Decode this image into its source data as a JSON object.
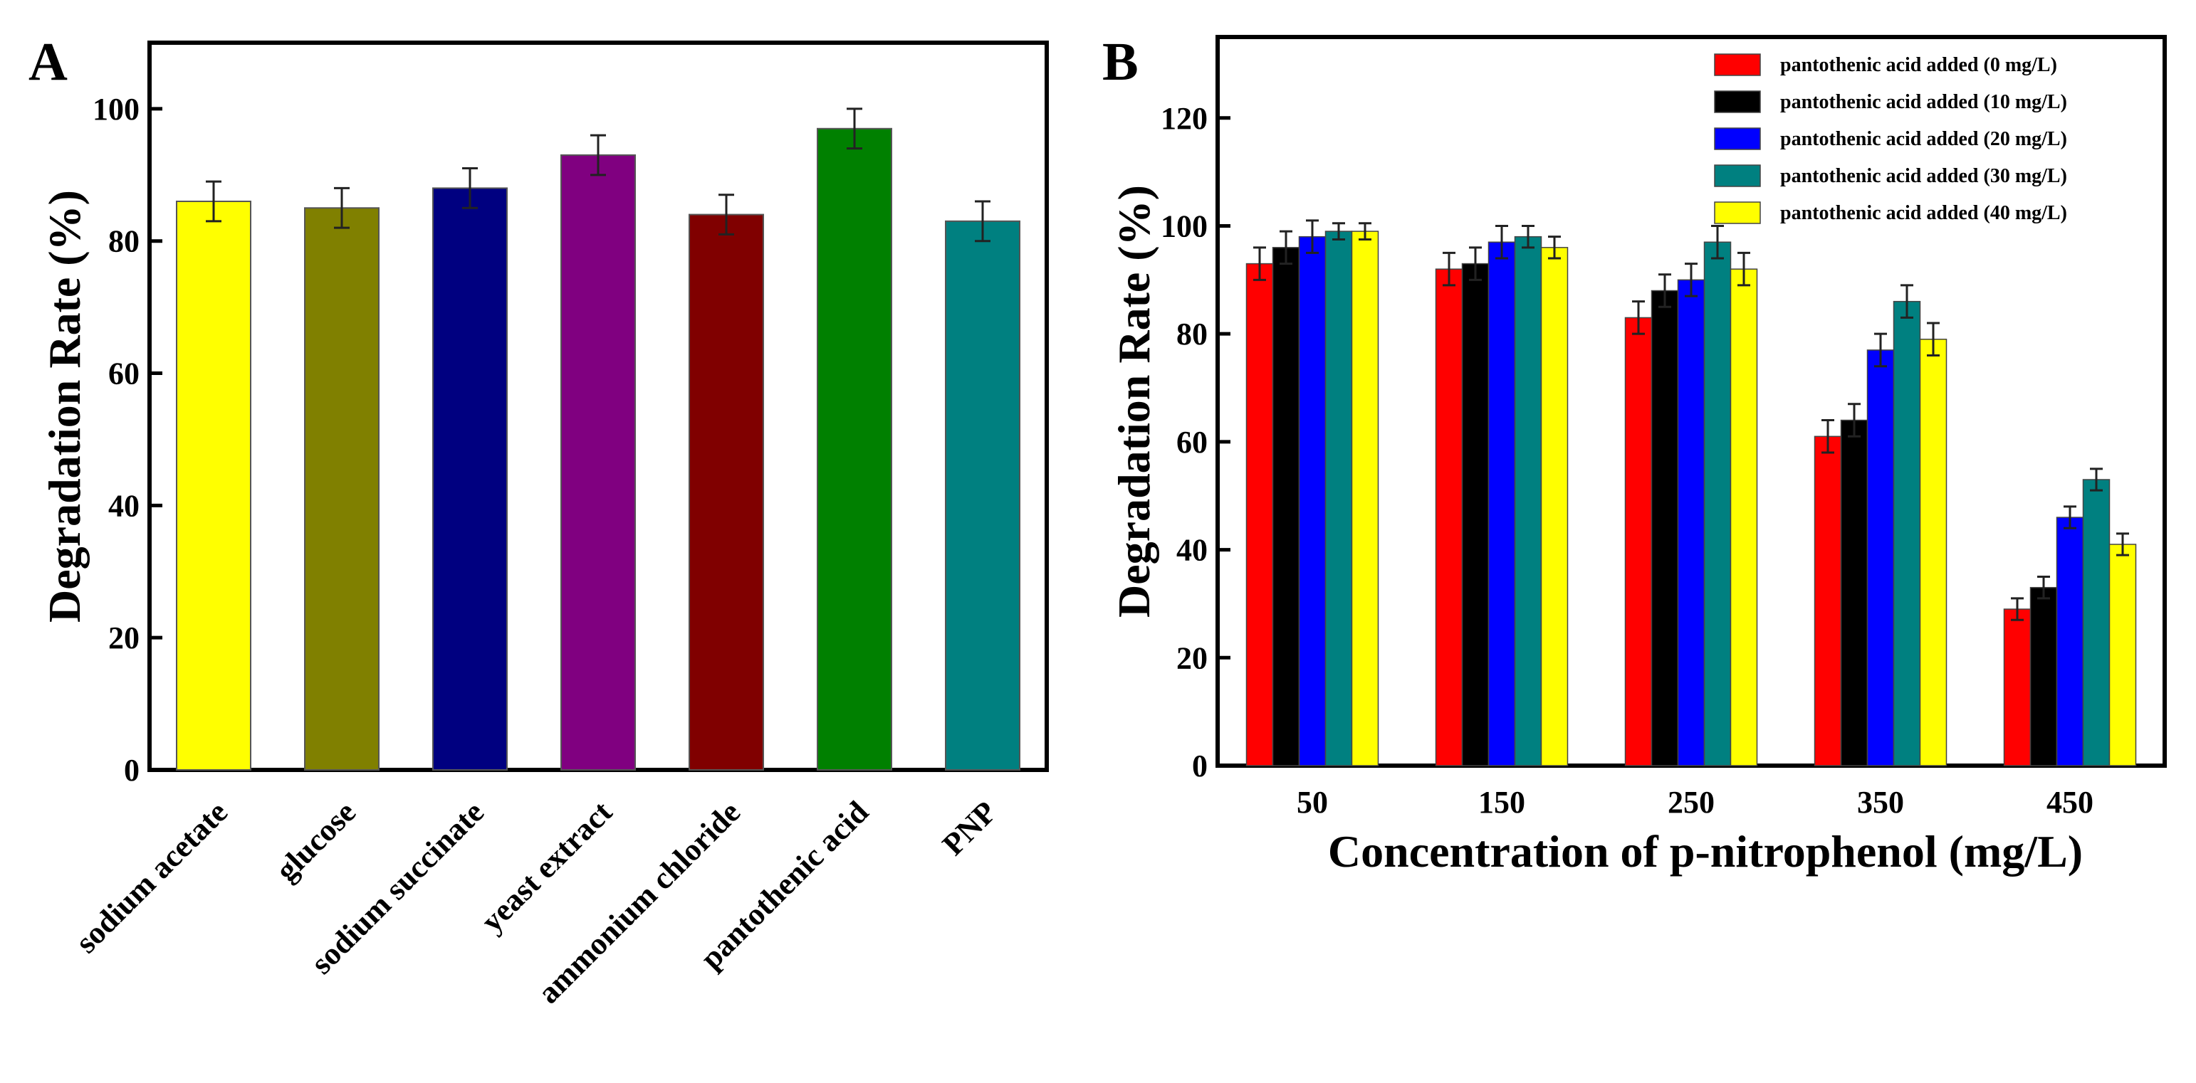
{
  "chart_data": [
    {
      "type": "bar",
      "panel_label": "A",
      "title": "",
      "xlabel": "",
      "ylabel": "Degradation Rate (%)",
      "ylim": [
        0,
        110
      ],
      "yticks": [
        0,
        20,
        40,
        60,
        80,
        100
      ],
      "categories": [
        "sodium acetate",
        "glucose",
        "sodium succinate",
        "yeast extract",
        "ammonium chloride",
        "pantothenic acid",
        "PNP"
      ],
      "values": [
        86,
        85,
        88,
        93,
        84,
        97,
        83
      ],
      "errors": [
        3,
        3,
        3,
        3,
        3,
        3,
        3
      ],
      "colors": [
        "#ffff00",
        "#808000",
        "#000080",
        "#800080",
        "#800000",
        "#008000",
        "#008080"
      ],
      "grid": false,
      "legend": "none"
    },
    {
      "type": "bar",
      "panel_label": "B",
      "title": "",
      "xlabel": "Concentration of p-nitrophenol (mg/L)",
      "ylabel": "Degradation Rate (%)",
      "ylim": [
        0,
        135
      ],
      "yticks": [
        0,
        20,
        40,
        60,
        80,
        100,
        120
      ],
      "categories": [
        "50",
        "150",
        "250",
        "350",
        "450"
      ],
      "series": [
        {
          "name": "pantothenic acid added (0 mg/L)",
          "color": "#ff0000",
          "values": [
            93,
            92,
            83,
            61,
            29
          ],
          "errors": [
            3,
            3,
            3,
            3,
            2
          ]
        },
        {
          "name": "pantothenic acid added (10 mg/L)",
          "color": "#000000",
          "values": [
            96,
            93,
            88,
            64,
            33
          ],
          "errors": [
            3,
            3,
            3,
            3,
            2
          ]
        },
        {
          "name": "pantothenic acid added (20 mg/L)",
          "color": "#0000ff",
          "values": [
            98,
            97,
            90,
            77,
            46
          ],
          "errors": [
            3,
            3,
            3,
            3,
            2
          ]
        },
        {
          "name": "pantothenic acid added (30 mg/L)",
          "color": "#008080",
          "values": [
            99,
            98,
            97,
            86,
            53
          ],
          "errors": [
            1.5,
            2,
            3,
            3,
            2
          ]
        },
        {
          "name": "pantothenic acid added (40 mg/L)",
          "color": "#ffff00",
          "values": [
            99,
            96,
            92,
            79,
            41
          ],
          "errors": [
            1.5,
            2,
            3,
            3,
            2
          ]
        }
      ],
      "grid": false,
      "legend": "top-right"
    }
  ]
}
